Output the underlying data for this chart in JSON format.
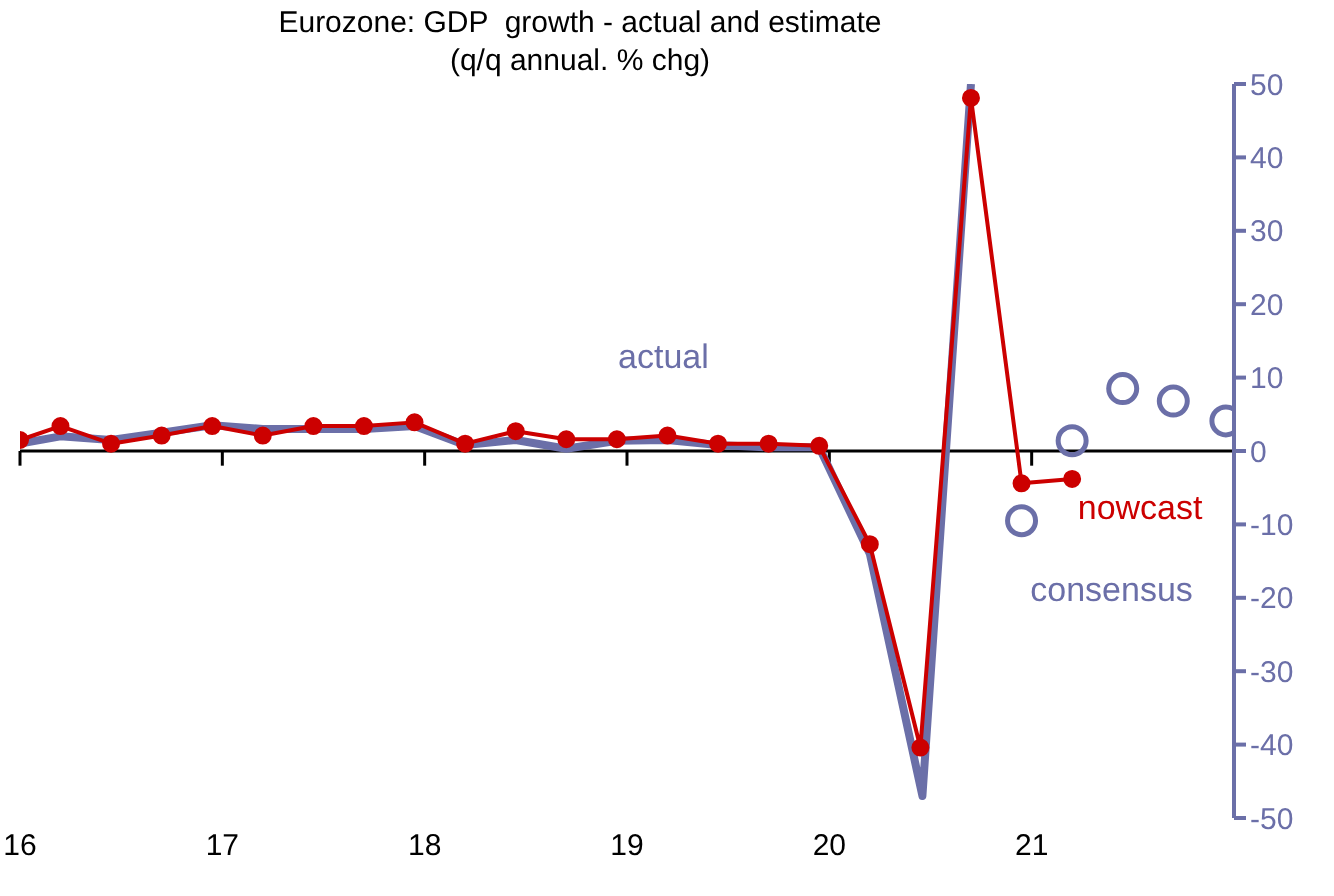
{
  "chart_data": {
    "type": "line",
    "title": "Eurozone: GDP  growth - actual and estimate",
    "subtitle": "(q/q annual. % chg)",
    "series": [
      {
        "name": "actual",
        "color": "#6b6fa8",
        "marker": "none",
        "x": [
          2016,
          2016.2,
          2016.45,
          2016.7,
          2016.95,
          2017.2,
          2017.45,
          2017.7,
          2017.95,
          2018.2,
          2018.45,
          2018.7,
          2018.95,
          2019.2,
          2019.45,
          2019.7,
          2019.95,
          2020.2,
          2020.46,
          2020.7
        ],
        "values": [
          1.0,
          2.0,
          1.5,
          2.5,
          3.5,
          3.0,
          3.0,
          3.0,
          3.4,
          0.8,
          1.5,
          0.3,
          1.4,
          1.5,
          0.8,
          0.5,
          0.5,
          -14,
          -47,
          50
        ]
      },
      {
        "name": "nowcast",
        "color": "#cc0000",
        "marker": "circle",
        "x": [
          2016,
          2016.2,
          2016.45,
          2016.7,
          2016.95,
          2017.2,
          2017.45,
          2017.7,
          2017.95,
          2018.2,
          2018.45,
          2018.7,
          2018.95,
          2019.2,
          2019.45,
          2019.7,
          2019.95,
          2020.2,
          2020.45,
          2020.7,
          2020.95,
          2021.2
        ],
        "values": [
          1.5,
          3.4,
          1.0,
          2.1,
          3.4,
          2.1,
          3.4,
          3.4,
          3.9,
          1.0,
          2.7,
          1.6,
          1.6,
          2.1,
          1.0,
          1.0,
          0.7,
          -12.7,
          -40.4,
          48.1,
          -4.4,
          -3.8
        ]
      },
      {
        "name": "consensus",
        "type": "scatter",
        "color": "#6b6fa8",
        "marker": "circle",
        "x": [
          2020.95,
          2021.2,
          2021.45,
          2021.7,
          2021.96
        ],
        "values": [
          -9.5,
          1.4,
          8.5,
          6.8,
          4.1
        ]
      }
    ],
    "xlim": [
      2016,
      2022
    ],
    "xticks": [
      {
        "value": 2016,
        "label": "16"
      },
      {
        "value": 2017,
        "label": "17"
      },
      {
        "value": 2018,
        "label": "18"
      },
      {
        "value": 2019,
        "label": "19"
      },
      {
        "value": 2020,
        "label": "20"
      },
      {
        "value": 2021,
        "label": "21"
      },
      {
        "value": 2022,
        "label": null
      }
    ],
    "ylim": [
      -50,
      50
    ],
    "yticks": [
      -50,
      -40,
      -30,
      -20,
      -10,
      0,
      10,
      20,
      30,
      40,
      50
    ],
    "legend": false
  }
}
